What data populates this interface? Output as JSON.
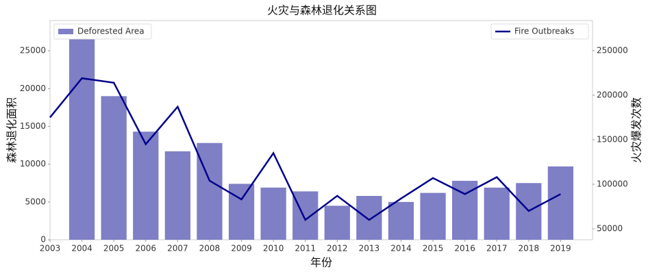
{
  "chart_data": {
    "type": "bar",
    "title": "火灾与森林退化关系图",
    "x_label": "年份",
    "y_label": "森林退化面积",
    "y2_label": "火灾爆发次数",
    "xlim": [
      2003,
      2020
    ],
    "xticks": [
      2003,
      2004,
      2005,
      2006,
      2007,
      2008,
      2009,
      2010,
      2011,
      2012,
      2013,
      2014,
      2015,
      2016,
      2017,
      2018,
      2019
    ],
    "ylim": [
      0,
      29000
    ],
    "yticks": [
      0,
      5000,
      10000,
      15000,
      20000,
      25000
    ],
    "y2lim": [
      37700,
      283800
    ],
    "y2ticks": [
      50000,
      100000,
      150000,
      200000,
      250000
    ],
    "series": [
      {
        "name": "Deforested Area",
        "type": "bar",
        "color": "#7f7fc6",
        "legend": "upper left",
        "x": [
          2004,
          2005,
          2006,
          2007,
          2008,
          2009,
          2010,
          2011,
          2012,
          2013,
          2014,
          2015,
          2016,
          2017,
          2018,
          2019
        ],
        "values": [
          28000,
          19000,
          14300,
          11700,
          12800,
          7400,
          6900,
          6400,
          4500,
          5800,
          5000,
          6200,
          7800,
          6900,
          7500,
          9700
        ]
      },
      {
        "name": "Fire Outbreaks",
        "type": "line",
        "axis": "y2",
        "color": "#00008b",
        "legend": "upper right",
        "x": [
          2003,
          2004,
          2005,
          2006,
          2007,
          2008,
          2009,
          2010,
          2011,
          2012,
          2013,
          2014,
          2015,
          2016,
          2017,
          2018,
          2019
        ],
        "values": [
          175000,
          219000,
          214000,
          145000,
          187000,
          104000,
          83000,
          135000,
          60000,
          87000,
          60000,
          84000,
          107000,
          89000,
          108000,
          70000,
          89000
        ]
      }
    ]
  }
}
